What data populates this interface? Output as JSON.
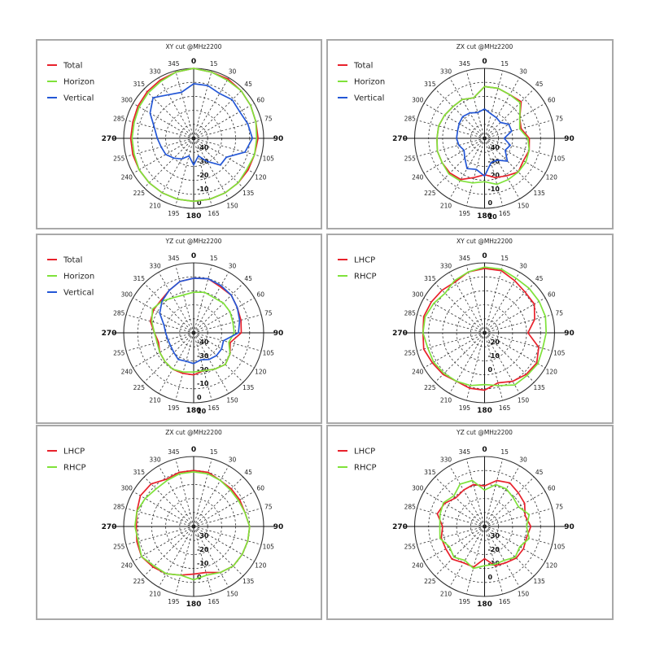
{
  "colors": {
    "red": "#e8212b",
    "green": "#7fe23a",
    "blue": "#2457d6"
  },
  "angle_labels": [
    "0",
    "15",
    "30",
    "45",
    "60",
    "75",
    "90",
    "105",
    "120",
    "135",
    "150",
    "165",
    "180",
    "195",
    "210",
    "225",
    "240",
    "255",
    "270",
    "285",
    "300",
    "315",
    "330",
    "345"
  ],
  "chart_data": [
    {
      "type": "polar",
      "title": "XY cut @MHz2200",
      "radial_labels": [
        "-40",
        "-30",
        "-20",
        "-10",
        "0"
      ],
      "series": [
        {
          "name": "Total",
          "color": "#e8212b",
          "values": [
            0,
            -1,
            -1,
            -2,
            -3,
            -4,
            -4,
            -5,
            -5,
            -5,
            -5,
            -5,
            -5,
            -5,
            -5,
            -5,
            -5,
            -5,
            -5,
            -5,
            -4,
            -3,
            -2,
            -1
          ]
        },
        {
          "name": "Horizon",
          "color": "#7fe23a",
          "values": [
            0,
            -1,
            -2,
            -2,
            -3,
            -4,
            -5,
            -5,
            -6,
            -5,
            -5,
            -5,
            -5,
            -5,
            -5,
            -5,
            -5,
            -6,
            -6,
            -6,
            -5,
            -4,
            -3,
            -1
          ]
        },
        {
          "name": "Vertical",
          "color": "#2457d6",
          "values": [
            -11,
            -11,
            -13,
            -11,
            -12,
            -10,
            -8,
            -12,
            -23,
            -23,
            -31,
            -37,
            -31,
            -37,
            -33,
            -30,
            -27,
            -26,
            -24,
            -21,
            -14,
            -9,
            -14,
            -16
          ]
        }
      ]
    },
    {
      "type": "polar",
      "title": "ZX cut @MHz2200",
      "radial_labels": [
        "-40",
        "-30",
        "-20",
        "-10",
        "0",
        "10"
      ],
      "series": [
        {
          "name": "Total",
          "color": "#e8212b",
          "values": [
            -13,
            -13,
            -14,
            -13,
            -21,
            -23,
            -18,
            -17,
            -18,
            -16,
            -19,
            -21,
            -24,
            -21,
            -16,
            -15,
            -15,
            -15,
            -16,
            -16,
            -17,
            -18,
            -18,
            -20
          ]
        },
        {
          "name": "Horizon",
          "color": "#7fe23a",
          "values": [
            -13,
            -13,
            -14,
            -14,
            -21,
            -24,
            -19,
            -17,
            -16,
            -16,
            -16,
            -16,
            -19,
            -17,
            -15,
            -14,
            -15,
            -15,
            -16,
            -16,
            -17,
            -18,
            -18,
            -20
          ]
        },
        {
          "name": "Vertical",
          "color": "#2457d6",
          "values": [
            -29,
            -32,
            -33,
            -34,
            -30,
            -30,
            -36,
            -31,
            -33,
            -27,
            -32,
            -32,
            -23,
            -27,
            -25,
            -30,
            -33,
            -31,
            -30,
            -30,
            -29,
            -28,
            -29,
            -31
          ]
        }
      ]
    },
    {
      "type": "polar",
      "title": "YZ cut @MHz2200",
      "radial_labels": [
        "-40",
        "-30",
        "-20",
        "-10",
        "0",
        "10"
      ],
      "series": [
        {
          "name": "Total",
          "color": "#e8212b",
          "values": [
            -11,
            -10,
            -12,
            -12,
            -14,
            -15,
            -16,
            -23,
            -20,
            -18,
            -20,
            -22,
            -20,
            -20,
            -20,
            -21,
            -22,
            -24,
            -22,
            -18,
            -17,
            -17,
            -15,
            -12
          ]
        },
        {
          "name": "Horizon",
          "color": "#7fe23a",
          "values": [
            -21,
            -20,
            -21,
            -20,
            -20,
            -21,
            -21,
            -24,
            -20,
            -18,
            -20,
            -22,
            -22,
            -21,
            -20,
            -21,
            -22,
            -23,
            -22,
            -19,
            -16,
            -18,
            -21,
            -22
          ]
        },
        {
          "name": "Vertical",
          "color": "#2457d6",
          "values": [
            -11,
            -10,
            -11,
            -12,
            -14,
            -16,
            -18,
            -28,
            -27,
            -27,
            -28,
            -30,
            -28,
            -29,
            -28,
            -30,
            -31,
            -31,
            -30,
            -28,
            -22,
            -18,
            -15,
            -12
          ]
        }
      ]
    },
    {
      "type": "polar",
      "title": "XY cut @MHz2200",
      "radial_labels": [
        "-20",
        "-10",
        "0"
      ],
      "series": [
        {
          "name": "LHCP",
          "color": "#e8212b",
          "values": [
            -4,
            -4,
            -7,
            -9,
            -9,
            -13,
            -19,
            -10,
            -7,
            -8,
            -10,
            -13,
            -9,
            -9,
            -10,
            -8,
            -7,
            -5,
            -6,
            -5,
            -6,
            -7,
            -8,
            -5
          ]
        },
        {
          "name": "RHCP",
          "color": "#7fe23a",
          "values": [
            -3,
            -3,
            -5,
            -5,
            -5,
            -5,
            -6,
            -7,
            -6,
            -7,
            -7,
            -11,
            -13,
            -11,
            -10,
            -9,
            -8,
            -8,
            -6,
            -6,
            -8,
            -10,
            -7,
            -5
          ]
        }
      ]
    },
    {
      "type": "polar",
      "title": "ZX cut @MHz2200",
      "radial_labels": [
        "-30",
        "-20",
        "-10",
        "0"
      ],
      "series": [
        {
          "name": "LHCP",
          "color": "#e8212b",
          "values": [
            -10,
            -10,
            -12,
            -12,
            -12,
            -12,
            -10,
            -10,
            -10,
            -10,
            -12,
            -16,
            -16,
            -14,
            -11,
            -9,
            -7,
            -8,
            -9,
            -8,
            -6,
            -7,
            -11,
            -10
          ]
        },
        {
          "name": "RHCP",
          "color": "#7fe23a",
          "values": [
            -11,
            -11,
            -12,
            -13,
            -13,
            -12,
            -10,
            -10,
            -10,
            -10,
            -12,
            -14,
            -12,
            -14,
            -11,
            -10,
            -7,
            -9,
            -8,
            -8,
            -10,
            -12,
            -12,
            -11
          ]
        }
      ]
    },
    {
      "type": "polar",
      "title": "YZ cut @MHz2200",
      "radial_labels": [
        "-30",
        "-20",
        "-10",
        "0"
      ],
      "series": [
        {
          "name": "LHCP",
          "color": "#e8212b",
          "values": [
            -21,
            -16,
            -14,
            -16,
            -17,
            -20,
            -17,
            -19,
            -18,
            -18,
            -20,
            -21,
            -27,
            -20,
            -20,
            -17,
            -18,
            -18,
            -20,
            -15,
            -17,
            -21,
            -20,
            -19
          ]
        },
        {
          "name": "RHCP",
          "color": "#7fe23a",
          "values": [
            -24,
            -19,
            -19,
            -21,
            -22,
            -17,
            -20,
            -17,
            -21,
            -19,
            -22,
            -22,
            -22,
            -19,
            -22,
            -19,
            -21,
            -17,
            -18,
            -17,
            -16,
            -19,
            -15,
            -16
          ]
        }
      ]
    }
  ]
}
